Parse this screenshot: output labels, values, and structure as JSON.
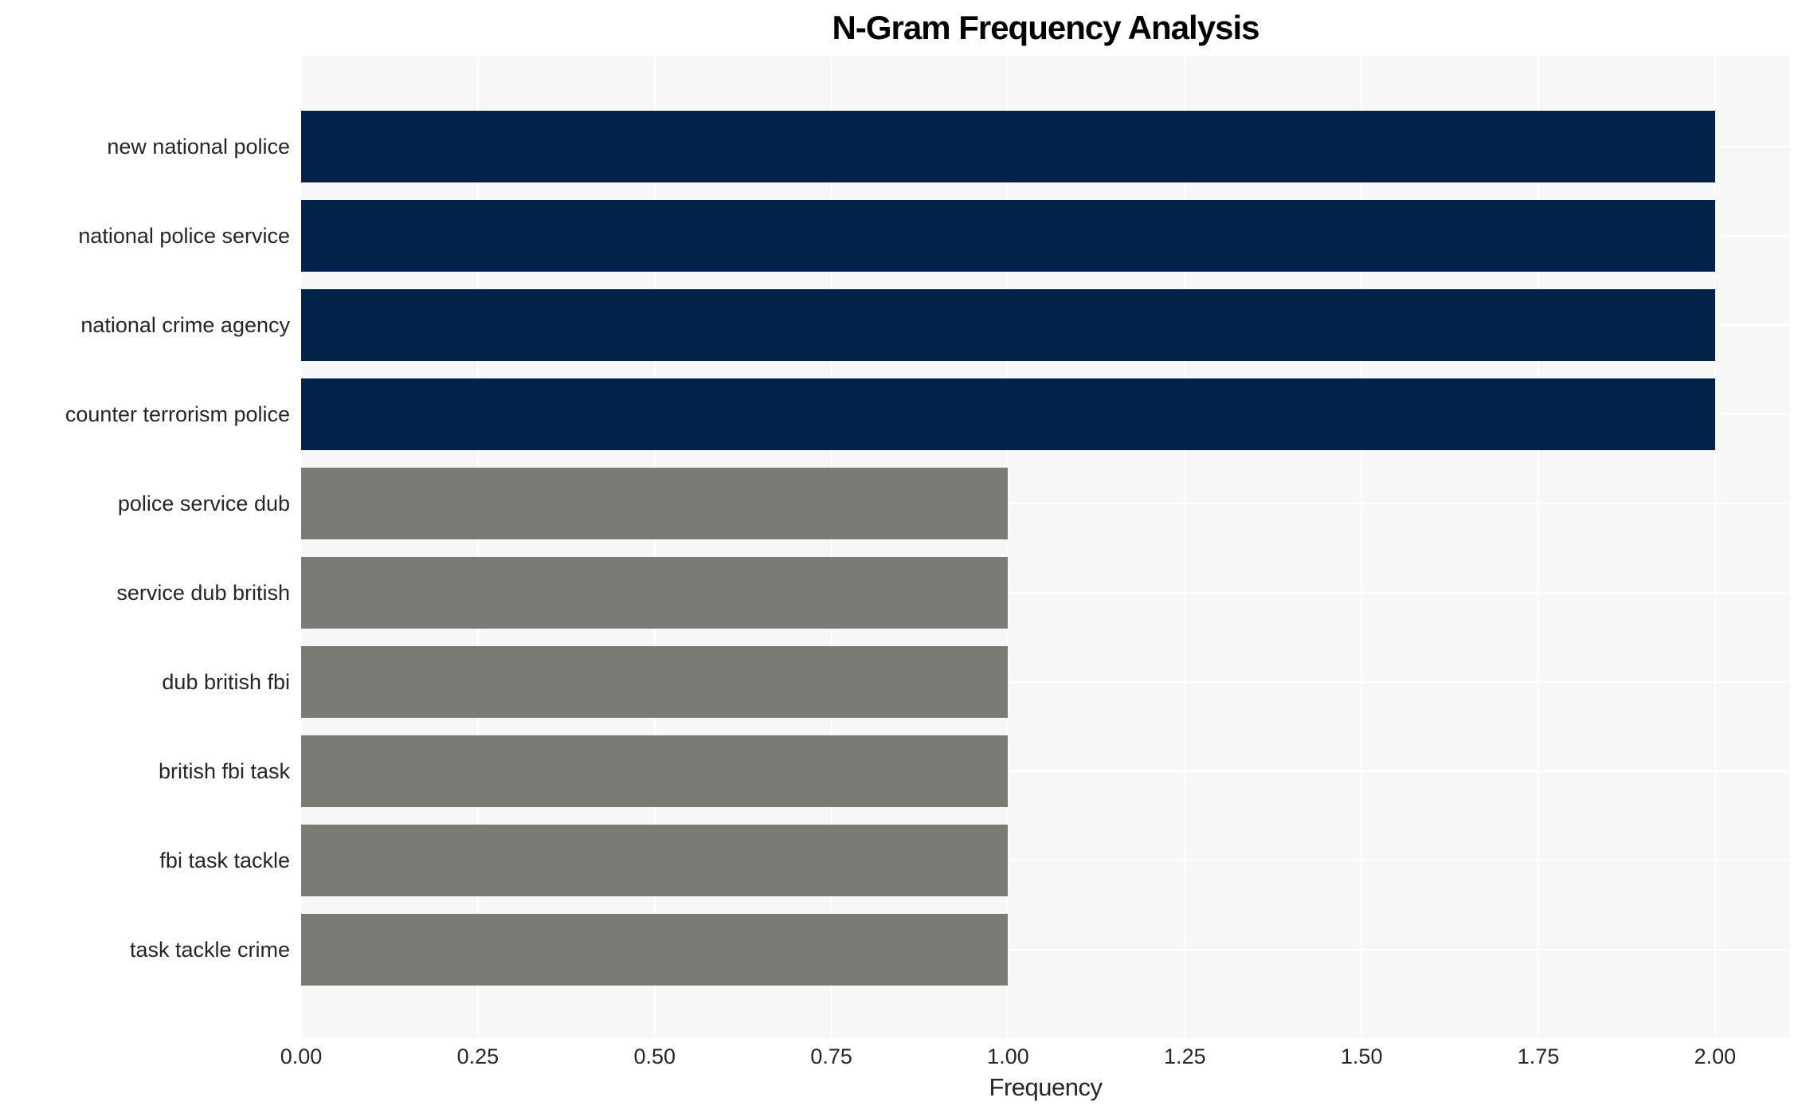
{
  "figure": {
    "background": "#ffffff",
    "plot_background": "#f7f7f7",
    "grid_color": "#ffffff",
    "text_color": "#262626",
    "title_color": "#000000"
  },
  "chart_data": {
    "type": "bar",
    "orientation": "horizontal",
    "title": "N-Gram Frequency Analysis",
    "xlabel": "Frequency",
    "ylabel": "",
    "categories": [
      "new national police",
      "national police service",
      "national crime agency",
      "counter terrorism police",
      "police service dub",
      "service dub british",
      "dub british fbi",
      "british fbi task",
      "fbi task tackle",
      "task tackle crime"
    ],
    "values": [
      2,
      2,
      2,
      2,
      1,
      1,
      1,
      1,
      1,
      1
    ],
    "bar_colors": [
      "#022349",
      "#022349",
      "#022349",
      "#022349",
      "#7b7a74",
      "#7b7a74",
      "#7b7a74",
      "#7b7a74",
      "#7b7a74",
      "#7b7a74"
    ],
    "xlim": [
      0,
      2.106
    ],
    "xticks": [
      0,
      0.25,
      0.5,
      0.75,
      1.0,
      1.25,
      1.5,
      1.75,
      2.0
    ],
    "xtick_labels": [
      "0.00",
      "0.25",
      "0.50",
      "0.75",
      "1.00",
      "1.25",
      "1.50",
      "1.75",
      "2.00"
    ],
    "grid": true,
    "legend": false
  }
}
